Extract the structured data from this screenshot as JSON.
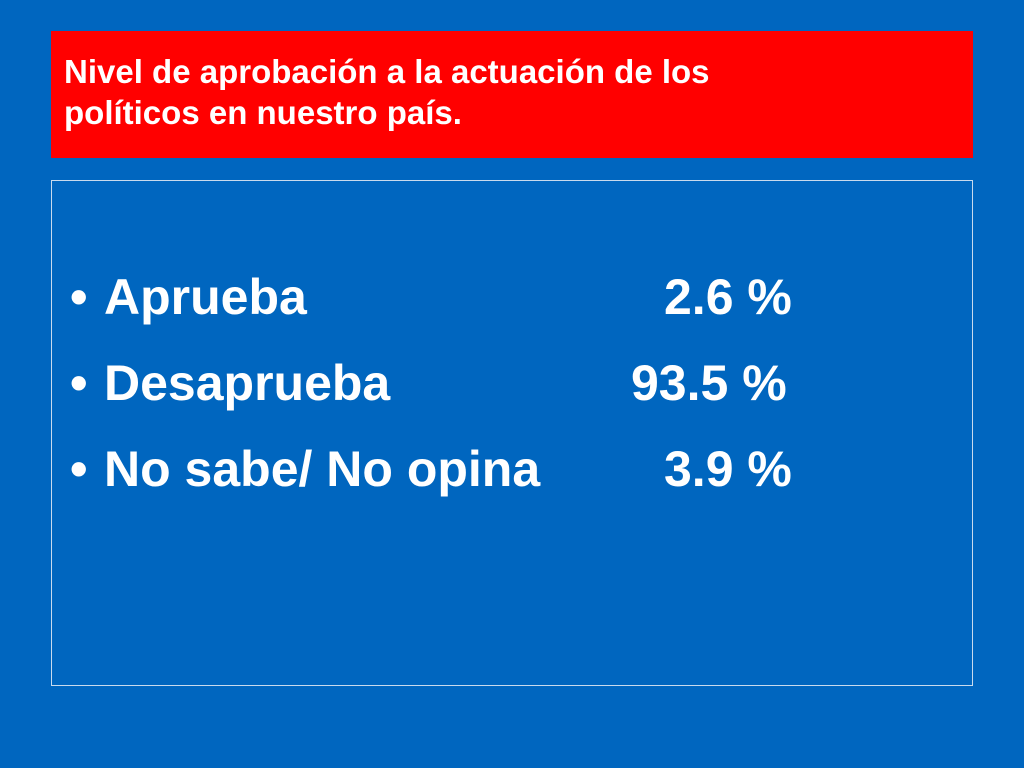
{
  "title": {
    "line1": "Nivel de aprobación a la actuación de los",
    "line2": "políticos en nuestro país."
  },
  "bullet_glyph": "•",
  "items": [
    {
      "label": "Aprueba",
      "value": "2.6 %"
    },
    {
      "label": "Desaprueba",
      "value": "93.5 %"
    },
    {
      "label": "No sabe/ No opina",
      "value": "3.9 %"
    }
  ],
  "colors": {
    "background": "#0066bf",
    "title_background": "#ff0000",
    "text": "#ffffff"
  }
}
